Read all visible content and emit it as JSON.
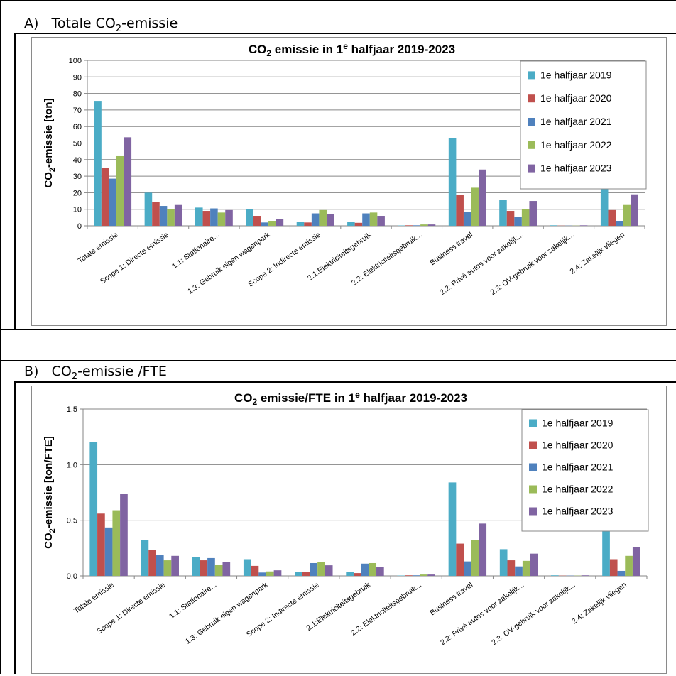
{
  "sections": [
    {
      "label_prefix": "A)",
      "label_pre": "Totale CO",
      "label_sub": "2",
      "label_post": "-emissie"
    },
    {
      "label_prefix": "B)",
      "label_pre": "CO",
      "label_sub": "2",
      "label_post": "-emissie /FTE"
    }
  ],
  "colors": [
    "#4bacc6",
    "#c0504d",
    "#4f81bd",
    "#9bbb59",
    "#8064a2"
  ],
  "chart_data": [
    {
      "type": "bar",
      "title_pre": "CO",
      "title_sub": "2",
      "title_mid": " emissie in 1",
      "title_sup": "e",
      "title_post": " halfjaar 2019-2023",
      "ylabel_pre": "CO",
      "ylabel_sub": "2",
      "ylabel_post": "-emissie [ton]",
      "ylim": [
        0,
        100
      ],
      "yticks": [
        "0",
        "10",
        "20",
        "30",
        "40",
        "50",
        "60",
        "70",
        "80",
        "90",
        "100"
      ],
      "grid": true,
      "legend": "top-right",
      "categories": [
        "Totale emissie",
        "Scope 1: Directe emissie",
        "1.1: Stationaire...",
        "1.3: Gebruik eigen wagenpark",
        "Scope 2: Indirecte emissie",
        "2.1:Elektriciteitsgebruik",
        "2.2: Elektriciteitsgebruik...",
        "Business travel",
        "2.2: Privé autos voor zakelijk...",
        "2.3: OV-gebruik voor zakelijk...",
        "2.4: Zakelijk vliegen"
      ],
      "series": [
        {
          "name": "1e halfjaar 2019",
          "values": [
            75.5,
            20,
            11,
            10,
            2.5,
            2.5,
            0.2,
            53,
            15.5,
            0.3,
            37
          ]
        },
        {
          "name": "1e halfjaar 2020",
          "values": [
            35,
            14.5,
            9,
            6,
            2,
            1.8,
            0.3,
            18.5,
            9,
            0.1,
            9.5
          ]
        },
        {
          "name": "1e halfjaar 2021",
          "values": [
            28.5,
            12,
            10.5,
            2,
            7.5,
            7.5,
            0.3,
            8.5,
            5.5,
            0.1,
            3
          ]
        },
        {
          "name": "1e halfjaar 2022",
          "values": [
            42.5,
            10,
            8,
            3,
            9.5,
            8,
            0.8,
            23,
            10,
            0.1,
            13
          ]
        },
        {
          "name": "1e halfjaar 2023",
          "values": [
            53.5,
            13,
            9.5,
            4,
            7,
            6,
            0.8,
            34,
            15,
            0.3,
            19
          ]
        }
      ]
    },
    {
      "type": "bar",
      "title_pre": "CO",
      "title_sub": "2",
      "title_mid": " emissie/FTE in 1",
      "title_sup": "e",
      "title_post": " halfjaar 2019-2023",
      "ylabel_pre": "CO",
      "ylabel_sub": "2",
      "ylabel_post": "-emissie [ton/FTE]",
      "ylim": [
        0,
        1.5
      ],
      "yticks": [
        "0.0",
        "0.5",
        "1.0",
        "1.5"
      ],
      "grid": true,
      "legend": "top-right",
      "categories": [
        "Totale emissie",
        "Scope 1: Directe emissie",
        "1.1: Stationaire...",
        "1.3: Gebruik eigen wagenpark",
        "Scope 2: Indirecte emissie",
        "2.1:Elektriciteitsgebruik",
        "2.2: Elektriciteitsgebruik...",
        "Business travel",
        "2.2: Privé autos voor zakelijk...",
        "2.3: OV-gebruik voor zakelijk...",
        "2.4: Zakelijk vliegen"
      ],
      "series": [
        {
          "name": "1e halfjaar 2019",
          "values": [
            1.2,
            0.32,
            0.17,
            0.15,
            0.035,
            0.035,
            0.003,
            0.84,
            0.24,
            0.005,
            0.59
          ]
        },
        {
          "name": "1e halfjaar 2020",
          "values": [
            0.56,
            0.23,
            0.14,
            0.09,
            0.033,
            0.025,
            0.005,
            0.29,
            0.14,
            0.002,
            0.15
          ]
        },
        {
          "name": "1e halfjaar 2021",
          "values": [
            0.435,
            0.185,
            0.16,
            0.03,
            0.115,
            0.11,
            0.005,
            0.13,
            0.085,
            0.002,
            0.045
          ]
        },
        {
          "name": "1e halfjaar 2022",
          "values": [
            0.59,
            0.14,
            0.1,
            0.04,
            0.125,
            0.115,
            0.012,
            0.32,
            0.135,
            0.002,
            0.18
          ]
        },
        {
          "name": "1e halfjaar 2023",
          "values": [
            0.74,
            0.18,
            0.125,
            0.05,
            0.095,
            0.08,
            0.012,
            0.47,
            0.2,
            0.005,
            0.26
          ]
        }
      ]
    }
  ]
}
